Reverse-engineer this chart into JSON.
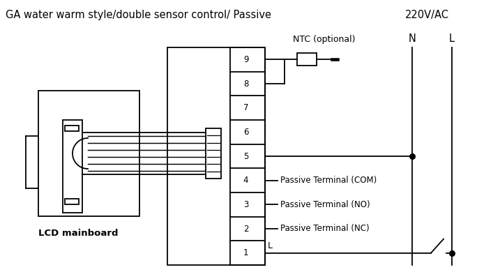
{
  "title": "GA water warm style/double sensor control/ Passive",
  "voltage_label": "220V/AC",
  "N_label": "N",
  "L_label": "L",
  "terminal_labels": {
    "9": "NTC (optional)",
    "4": "Passive Terminal (COM)",
    "3": "Passive Terminal (NO)",
    "2": "Passive Terminal (NC)",
    "1": "L"
  },
  "lcd_label": "LCD mainboard",
  "bg_color": "#ffffff",
  "fg_color": "#000000",
  "lw": 1.3
}
